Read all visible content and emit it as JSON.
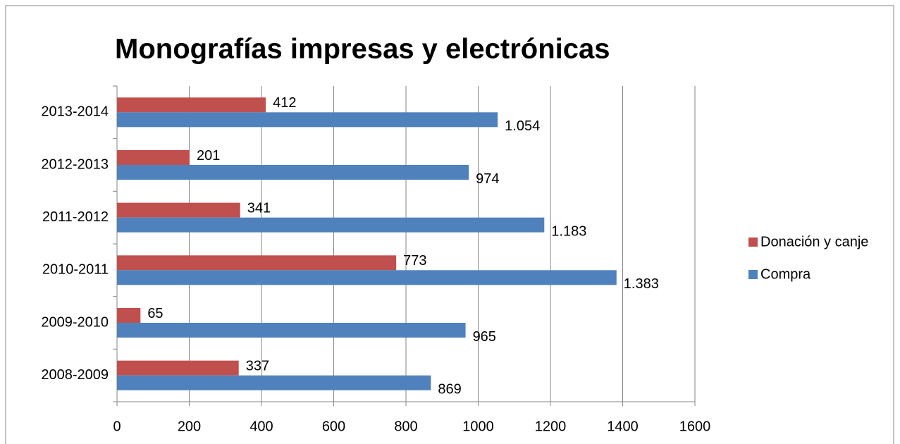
{
  "chart_data": {
    "type": "bar",
    "orientation": "horizontal",
    "title": "Monografías impresas y electrónicas",
    "categories": [
      "2008-2009",
      "2009-2010",
      "2010-2011",
      "2011-2012",
      "2012-2013",
      "2013-2014"
    ],
    "series": [
      {
        "name": "Donación y canje",
        "color": "#c0504d",
        "values": [
          337,
          65,
          773,
          341,
          201,
          412
        ]
      },
      {
        "name": "Compra",
        "color": "#4f81bd",
        "values": [
          869,
          965,
          1383,
          1183,
          974,
          1054
        ],
        "value_labels": [
          "869",
          "965",
          "1.383",
          "1.183",
          "974",
          "1.054"
        ]
      }
    ],
    "xlim": [
      0,
      1600
    ],
    "xticks": [
      0,
      200,
      400,
      600,
      800,
      1000,
      1200,
      1400,
      1600
    ],
    "grid": true,
    "legend": "right"
  }
}
